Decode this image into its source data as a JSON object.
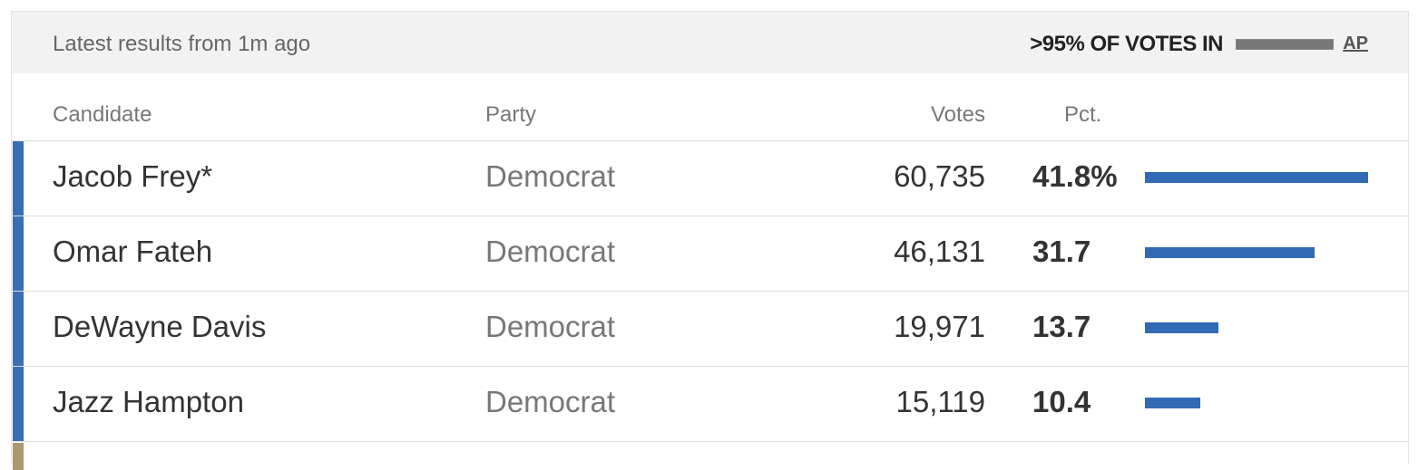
{
  "header": {
    "updated": "Latest results from 1m ago",
    "reporting": ">95% OF VOTES IN",
    "source": "AP"
  },
  "table": {
    "columns": [
      "Candidate",
      "Party",
      "Votes",
      "Pct."
    ],
    "rows": [
      {
        "candidate": "Jacob Frey*",
        "party": "Democrat",
        "votes": "60,735",
        "pct": 41.8,
        "pct_label": "41.8%"
      },
      {
        "candidate": "Omar Fateh",
        "party": "Democrat",
        "votes": "46,131",
        "pct": 31.7
      },
      {
        "candidate": "DeWayne Davis",
        "party": "Democrat",
        "votes": "19,971",
        "pct": 13.7
      },
      {
        "candidate": "Jazz Hampton",
        "party": "Democrat",
        "votes": "15,119",
        "pct": 10.4
      }
    ]
  }
}
